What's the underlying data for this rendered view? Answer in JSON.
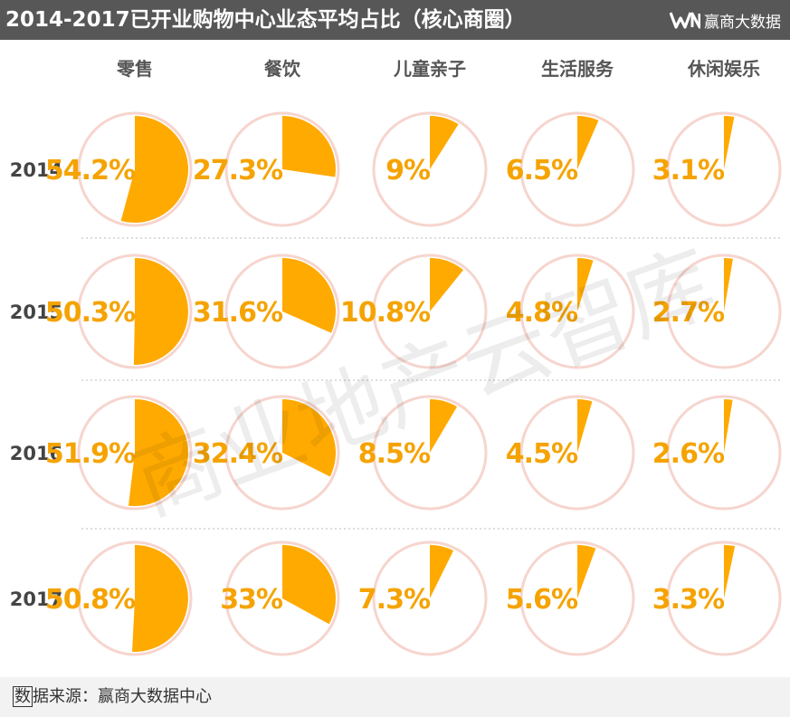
{
  "header": {
    "title": "2014-2017已开业购物中心业态平均占比（核心商圈）",
    "brand_name": "赢商大数据"
  },
  "footer": {
    "source_mark": "数",
    "source_text": "据来源：赢商大数据中心"
  },
  "watermark": "商业地产云智库",
  "colors": {
    "header_bg": "#575757",
    "slice": "#FFAA00",
    "label": "#F5A300",
    "ring": "#F6D5CE",
    "row_label": "#444444",
    "footer_bg": "#f2f2f2"
  },
  "chart_data": {
    "type": "pie",
    "title": "2014-2017已开业购物中心业态平均占比（核心商圈）",
    "categories": [
      "零售",
      "餐饮",
      "儿童亲子",
      "生活服务",
      "休闲娱乐"
    ],
    "years": [
      "2014",
      "2015",
      "2016",
      "2017"
    ],
    "unit": "%",
    "series": [
      {
        "name": "2014",
        "values": [
          54.2,
          27.3,
          9,
          6.5,
          3.1
        ],
        "labels": [
          "54.2%",
          "27.3%",
          "9%",
          "6.5%",
          "3.1%"
        ]
      },
      {
        "name": "2015",
        "values": [
          50.3,
          31.6,
          10.8,
          4.8,
          2.7
        ],
        "labels": [
          "50.3%",
          "31.6%",
          "10.8%",
          "4.8%",
          "2.7%"
        ]
      },
      {
        "name": "2016",
        "values": [
          51.9,
          32.4,
          8.5,
          4.5,
          2.6
        ],
        "labels": [
          "51.9%",
          "32.4%",
          "8.5%",
          "4.5%",
          "2.6%"
        ]
      },
      {
        "name": "2017",
        "values": [
          50.8,
          33,
          7.3,
          5.6,
          3.3
        ],
        "labels": [
          "50.8%",
          "33%",
          "7.3%",
          "5.6%",
          "3.3%"
        ]
      }
    ]
  }
}
